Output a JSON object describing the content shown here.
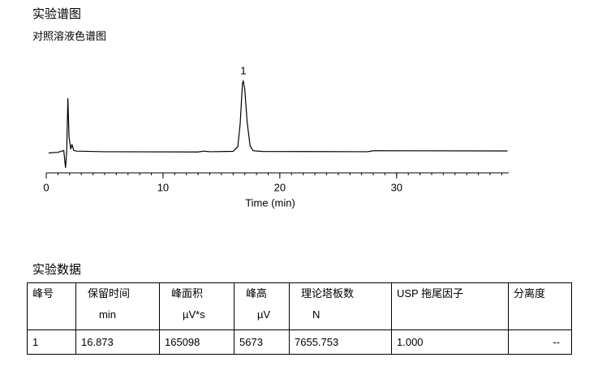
{
  "header": {
    "title": "实验谱图",
    "subtitle": "对照溶液色谱图"
  },
  "chart_data": {
    "type": "line",
    "x_label": "Time (min)",
    "xlim": [
      0,
      39.6
    ],
    "xticks": [
      0,
      10,
      20,
      30
    ],
    "minor_step": 1,
    "ylim": [
      -1700,
      6000
    ],
    "color": "#000000",
    "x": [
      0.2,
      1.0,
      1.5,
      1.65,
      1.75,
      1.85,
      1.95,
      2.1,
      2.2,
      2.35,
      2.6,
      5,
      13,
      13.5,
      14,
      16,
      16.4,
      16.6,
      16.8,
      16.873,
      17.0,
      17.2,
      17.45,
      17.7,
      18.5,
      27.5,
      28,
      39.5
    ],
    "series": [
      {
        "values": [
          -100,
          -50,
          100,
          -1300,
          0,
          4300,
          1200,
          200,
          600,
          100,
          50,
          0,
          -20,
          50,
          0,
          30,
          400,
          2200,
          5500,
          5673,
          5000,
          2400,
          500,
          80,
          20,
          0,
          80,
          60
        ]
      }
    ],
    "annotations": [
      {
        "text": "1",
        "x": 16.873
      }
    ]
  },
  "table": {
    "title": "实验数据",
    "headers": [
      {
        "name": "峰号"
      },
      {
        "name": "保留时间",
        "unit": "min"
      },
      {
        "name": "峰面积",
        "unit": "µV*s"
      },
      {
        "name": "峰高",
        "unit": "µV"
      },
      {
        "name": "理论塔板数",
        "unit": "N"
      },
      {
        "name": "USP 拖尾因子"
      },
      {
        "name": "分离度"
      }
    ],
    "rows": [
      [
        "1",
        "16.873",
        "165098",
        "5673",
        "7655.753",
        "1.000",
        "--"
      ]
    ]
  }
}
